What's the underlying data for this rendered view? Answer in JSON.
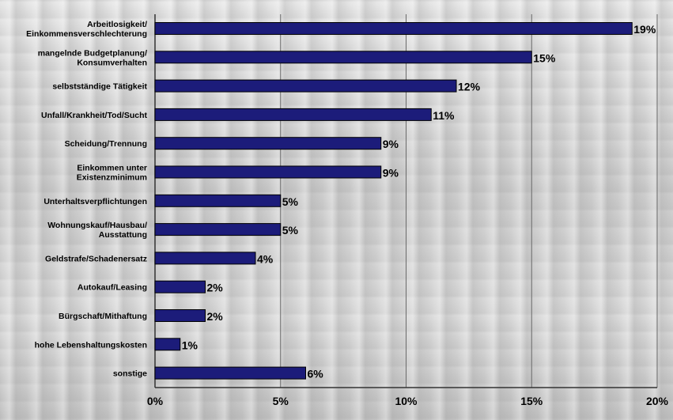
{
  "chart_data": {
    "type": "bar",
    "orientation": "horizontal",
    "categories": [
      "Arbeitlosigkeit/\nEinkommensverschlechterung",
      "mangelnde Budgetplanung/\nKonsumverhalten",
      "selbstständige Tätigkeit",
      "Unfall/Krankheit/Tod/Sucht",
      "Scheidung/Trennung",
      "Einkommen unter\nExistenzminimum",
      "Unterhaltsverpflichtungen",
      "Wohnungskauf/Hausbau/\nAusstattung",
      "Geldstrafe/Schadenersatz",
      "Autokauf/Leasing",
      "Bürgschaft/Mithaftung",
      "hohe Lebenshaltungskosten",
      "sonstige"
    ],
    "values": [
      19,
      15,
      12,
      11,
      9,
      9,
      5,
      5,
      4,
      2,
      2,
      1,
      6
    ],
    "value_labels": [
      "19%",
      "15%",
      "12%",
      "11%",
      "9%",
      "9%",
      "5%",
      "5%",
      "4%",
      "2%",
      "2%",
      "1%",
      "6%"
    ],
    "xlim": [
      0,
      20
    ],
    "xticks": [
      0,
      5,
      10,
      15,
      20
    ],
    "xtick_labels": [
      "0%",
      "5%",
      "10%",
      "15%",
      "20%"
    ],
    "grid": "vertical",
    "bar_color": "#1c1c7a",
    "bar_edge_color": "#000000",
    "title": "",
    "xlabel": "",
    "ylabel": ""
  }
}
